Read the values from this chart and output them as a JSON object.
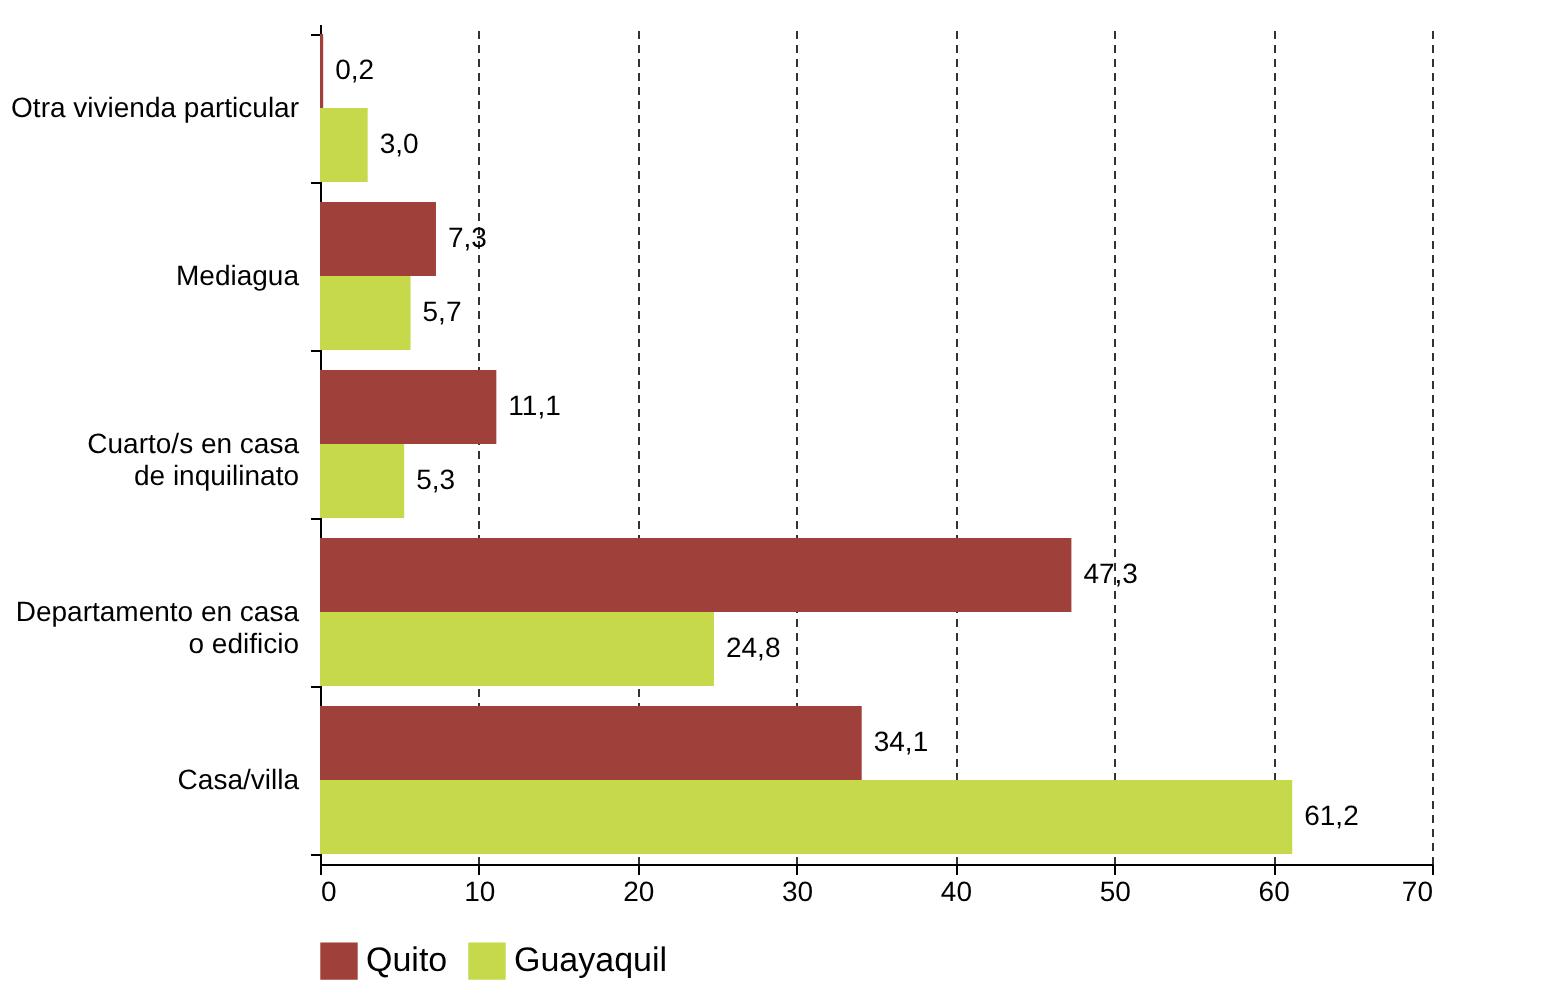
{
  "chart_data": {
    "type": "bar",
    "orientation": "horizontal",
    "categories": [
      "Otra vivienda particular",
      "Mediagua",
      "Cuarto/s en casa\nde inquilinato",
      "Departamento en casa\no edificio",
      "Casa/villa"
    ],
    "series": [
      {
        "name": "Quito",
        "color": "#a0403a",
        "values": [
          0.2,
          7.3,
          11.1,
          47.3,
          34.1
        ],
        "value_labels": [
          "0,2",
          "7,3",
          "11,1",
          "47,3",
          "34,1"
        ]
      },
      {
        "name": "Guayaquil",
        "color": "#c5d94a",
        "values": [
          3.0,
          5.7,
          5.3,
          24.8,
          61.2
        ],
        "value_labels": [
          "3,0",
          "5,7",
          "5,3",
          "24,8",
          "61,2"
        ]
      }
    ],
    "xlim": [
      0,
      70
    ],
    "xticks": [
      0,
      10,
      20,
      30,
      40,
      50,
      60,
      70
    ],
    "grid": "x",
    "legend": "bottom"
  }
}
